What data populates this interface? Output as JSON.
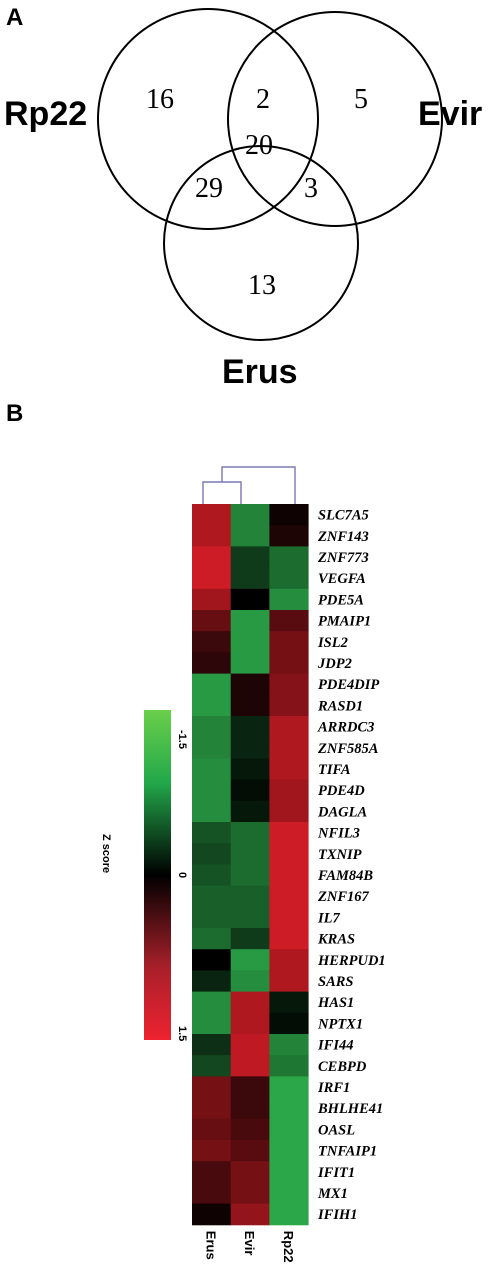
{
  "panel_a": {
    "label": "A",
    "venn": {
      "sets": [
        "Rp22",
        "Evir",
        "Erus"
      ],
      "regions": {
        "rp22_only": "16",
        "rp22_evir": "2",
        "evir_only": "5",
        "all_three": "20",
        "rp22_erus": "29",
        "evir_erus": "3",
        "erus_only": "13"
      }
    }
  },
  "panel_b": {
    "label": "B",
    "scale": {
      "top": "-1.5",
      "mid": "0",
      "bottom": "1.5",
      "title": "Z score"
    },
    "colors": {
      "low": "#2ecc4f",
      "mid": "#000000",
      "high": "#e8222b"
    },
    "samples": [
      "Erus",
      "Evir",
      "Rp22"
    ],
    "genes": [
      "SLC7A5",
      "ZNF143",
      "ZNF773",
      "VEGFA",
      "PDE5A",
      "PMAIP1",
      "ISL2",
      "JDP2",
      "PDE4DIP",
      "RASD1",
      "ARRDC3",
      "ZNF585A",
      "TIFA",
      "PDE4D",
      "DAGLA",
      "NFIL3",
      "TXNIP",
      "FAM84B",
      "ZNF167",
      "IL7",
      "KRAS",
      "HERPUD1",
      "SARS",
      "HAS1",
      "NPTX1",
      "IFI44",
      "CEBPD",
      "IRF1",
      "BHLHE41",
      "OASL",
      "TNFAIP1",
      "IFIT1",
      "MX1",
      "IFIH1"
    ]
  },
  "chart_data": {
    "type": "heatmap",
    "x": [
      "Erus",
      "Evir",
      "Rp22"
    ],
    "y": [
      "SLC7A5",
      "ZNF143",
      "ZNF773",
      "VEGFA",
      "PDE5A",
      "PMAIP1",
      "ISL2",
      "JDP2",
      "PDE4DIP",
      "RASD1",
      "ARRDC3",
      "ZNF585A",
      "TIFA",
      "PDE4D",
      "DAGLA",
      "NFIL3",
      "TXNIP",
      "FAM84B",
      "ZNF167",
      "IL7",
      "KRAS",
      "HERPUD1",
      "SARS",
      "HAS1",
      "NPTX1",
      "IFI44",
      "CEBPD",
      "IRF1",
      "BHLHE41",
      "OASL",
      "TNFAIP1",
      "IFIT1",
      "MX1",
      "IFIH1"
    ],
    "zlim": [
      -1.5,
      1.5
    ],
    "values": [
      [
        1.2,
        -1.1,
        0.1
      ],
      [
        1.2,
        -1.1,
        0.2
      ],
      [
        1.4,
        -0.5,
        -0.9
      ],
      [
        1.4,
        -0.5,
        -0.9
      ],
      [
        1.1,
        0.0,
        -1.2
      ],
      [
        0.7,
        -1.3,
        0.6
      ],
      [
        0.4,
        -1.3,
        0.8
      ],
      [
        0.3,
        -1.3,
        0.8
      ],
      [
        -1.3,
        0.2,
        0.9
      ],
      [
        -1.3,
        0.2,
        0.9
      ],
      [
        -1.1,
        -0.3,
        1.2
      ],
      [
        -1.1,
        -0.3,
        1.2
      ],
      [
        -1.2,
        -0.2,
        1.2
      ],
      [
        -1.2,
        -0.1,
        1.1
      ],
      [
        -1.2,
        -0.2,
        1.1
      ],
      [
        -0.7,
        -0.9,
        1.4
      ],
      [
        -0.6,
        -0.9,
        1.4
      ],
      [
        -0.7,
        -0.9,
        1.4
      ],
      [
        -0.8,
        -0.8,
        1.4
      ],
      [
        -0.8,
        -0.8,
        1.4
      ],
      [
        -0.9,
        -0.5,
        1.4
      ],
      [
        0.0,
        -1.3,
        1.2
      ],
      [
        -0.3,
        -1.2,
        1.2
      ],
      [
        -1.2,
        1.2,
        -0.2
      ],
      [
        -1.2,
        1.2,
        -0.1
      ],
      [
        -0.4,
        1.3,
        -1.1
      ],
      [
        -0.6,
        1.3,
        -1.0
      ],
      [
        0.8,
        0.4,
        -1.4
      ],
      [
        0.8,
        0.4,
        -1.4
      ],
      [
        0.7,
        0.5,
        -1.4
      ],
      [
        0.8,
        0.6,
        -1.4
      ],
      [
        0.5,
        0.8,
        -1.4
      ],
      [
        0.5,
        0.8,
        -1.4
      ],
      [
        0.1,
        1.0,
        -1.4
      ]
    ],
    "dendrogram": "Erus and Evir cluster together; Rp22 joins at the top"
  }
}
